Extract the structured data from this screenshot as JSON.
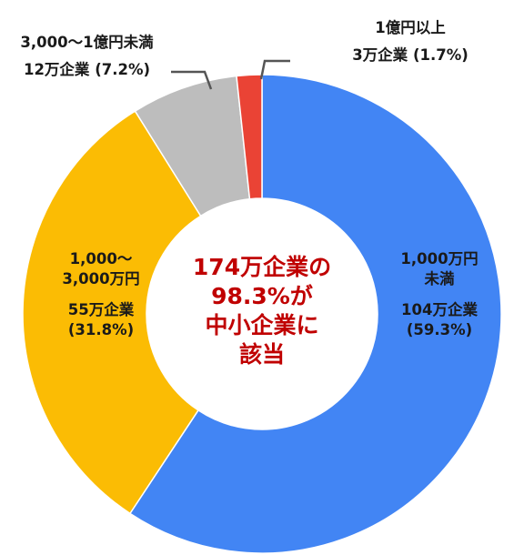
{
  "chart_data": {
    "type": "pie",
    "style": "donut",
    "slices": [
      {
        "lines": [
          "1,000万円",
          "未満"
        ],
        "count": "104万企業",
        "percent_label": "(59.3%)",
        "value": 59.3,
        "color": "#4285f4"
      },
      {
        "lines": [
          "1,000～",
          "3,000万円"
        ],
        "count": "55万企業",
        "percent_label": "(31.8%)",
        "value": 31.8,
        "color": "#fbbc04"
      },
      {
        "lines": [
          "3,000～1億円未満"
        ],
        "count": "12万企業",
        "percent_label": "(7.2%)",
        "value": 7.2,
        "color": "#bdbdbd"
      },
      {
        "lines": [
          "1億円以上"
        ],
        "count": "3万企業",
        "percent_label": "(1.7%)",
        "value": 1.7,
        "color": "#ea4335"
      }
    ],
    "center_text": [
      "174万企業の",
      "98.3%が",
      "中小企業に",
      "該当"
    ]
  }
}
